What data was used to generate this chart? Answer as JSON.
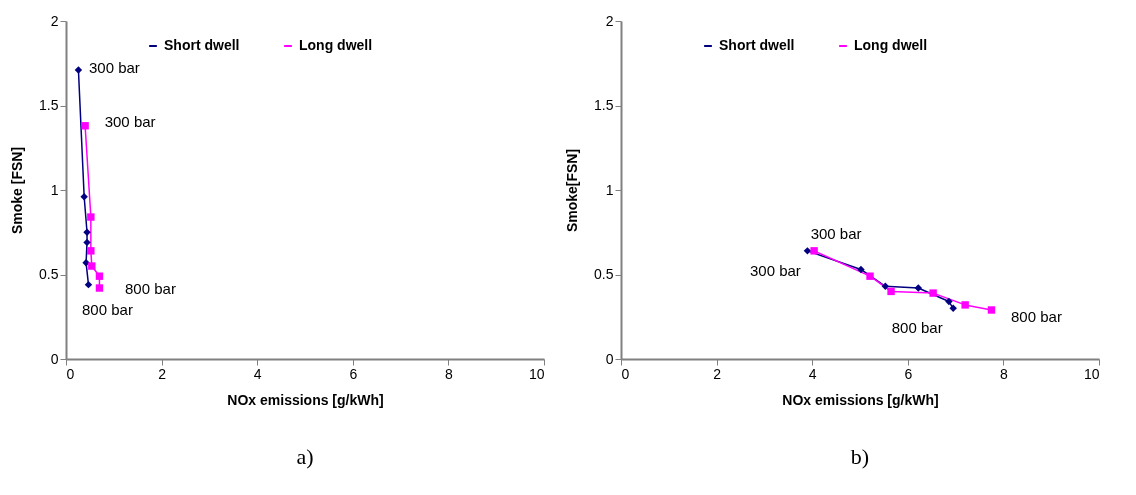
{
  "chart_data": [
    {
      "type": "line",
      "xlabel": "NOx emissions [g/kWh]",
      "ylabel": "Smoke [FSN]",
      "xlim": [
        0,
        10
      ],
      "xticks": [
        0,
        2,
        4,
        6,
        8,
        10
      ],
      "ylim": [
        0,
        2
      ],
      "yticks": [
        0,
        0.5,
        1,
        1.5,
        2
      ],
      "grid": false,
      "legend": "top",
      "series": [
        {
          "name": "Short dwell",
          "color": "#000080",
          "marker": "diamond",
          "x": [
            0.26,
            0.38,
            0.44,
            0.44,
            0.42,
            0.47
          ],
          "values": [
            1.71,
            0.96,
            0.75,
            0.69,
            0.57,
            0.44
          ]
        },
        {
          "name": "Long dwell",
          "color": "#ff00ff",
          "marker": "square",
          "x": [
            0.4,
            0.52,
            0.52,
            0.54,
            0.7,
            0.7
          ],
          "values": [
            1.38,
            0.84,
            0.64,
            0.55,
            0.49,
            0.42
          ]
        }
      ],
      "annotations": [
        {
          "text": "300 bar",
          "x": 0.26,
          "y": 1.71
        },
        {
          "text": "300 bar",
          "x": 0.4,
          "y": 1.38
        },
        {
          "text": "800 bar",
          "x": 0.7,
          "y": 0.42
        },
        {
          "text": "800 bar",
          "x": 0.47,
          "y": 0.44
        },
        "a)"
      ]
    },
    {
      "type": "line",
      "xlabel": "NOx emissions [g/kWh]",
      "ylabel": "Smoke[FSN]",
      "xlim": [
        0,
        10
      ],
      "xticks": [
        0,
        2,
        4,
        6,
        8,
        10
      ],
      "ylim": [
        0,
        2
      ],
      "yticks": [
        0,
        0.5,
        1,
        1.5,
        2
      ],
      "grid": false,
      "legend": "top",
      "series": [
        {
          "name": "Short dwell",
          "color": "#000080",
          "marker": "diamond",
          "x": [
            3.9,
            5.02,
            5.53,
            6.22,
            6.86,
            6.95
          ],
          "values": [
            0.64,
            0.53,
            0.43,
            0.42,
            0.34,
            0.3
          ]
        },
        {
          "name": "Long dwell",
          "color": "#ff00ff",
          "marker": "square",
          "x": [
            4.04,
            5.21,
            5.65,
            6.53,
            7.2,
            7.75
          ],
          "values": [
            0.64,
            0.49,
            0.4,
            0.39,
            0.32,
            0.29
          ]
        }
      ],
      "annotations": [
        {
          "text": "300 bar",
          "x": 3.9,
          "y": 0.64
        },
        {
          "text": "300 bar",
          "x": 4.04,
          "y": 0.64
        },
        {
          "text": "800 bar",
          "x": 6.95,
          "y": 0.3
        },
        {
          "text": "800 bar",
          "x": 7.75,
          "y": 0.29
        },
        "b)"
      ]
    }
  ]
}
